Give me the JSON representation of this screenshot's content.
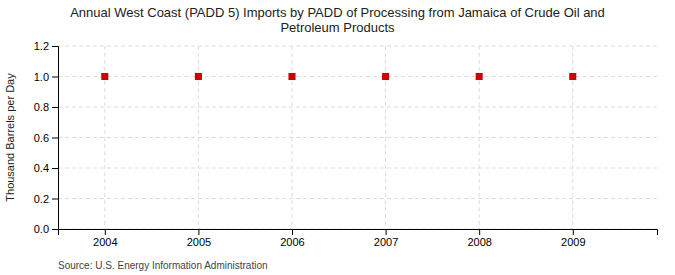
{
  "chart_data": {
    "type": "scatter",
    "title": "Annual West Coast (PADD 5) Imports by PADD of Processing from Jamaica of Crude Oil and\nPetroleum Products",
    "ylabel": "Thousand Barrels per Day",
    "annotations": [
      "Source: U.S. Energy Information Administration"
    ],
    "x": [
      2004,
      2005,
      2006,
      2007,
      2008,
      2009
    ],
    "values": [
      1.0,
      1.0,
      1.0,
      1.0,
      1.0,
      1.0
    ],
    "color": "#cc0000",
    "marker": "square",
    "xlim": [
      2003.5,
      2009.9
    ],
    "ylim": [
      0.0,
      1.2
    ],
    "xticks": [
      2004,
      2005,
      2006,
      2007,
      2008,
      2009
    ],
    "yticks": [
      {
        "value": 0.0,
        "label": "0.0"
      },
      0.2,
      0.4,
      0.6,
      0.8,
      {
        "value": 1.0,
        "label": "1.0"
      },
      1.2
    ],
    "grid": true
  }
}
